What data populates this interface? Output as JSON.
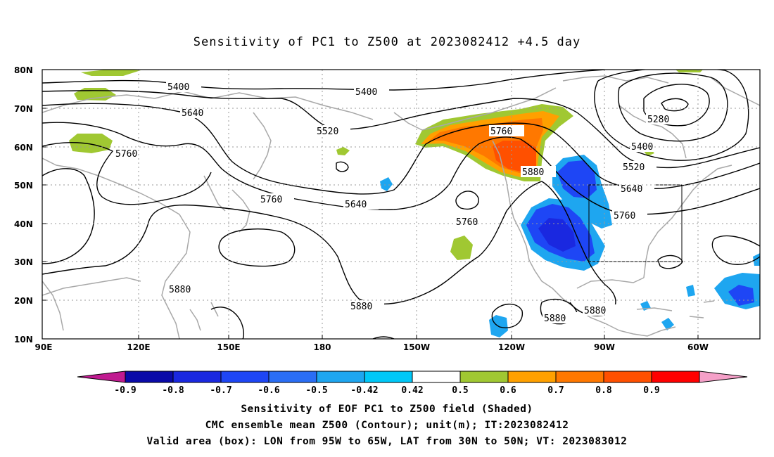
{
  "title": "Sensitivity of PC1 to Z500 at 2023082412 +4.5 day",
  "lat_labels": [
    "80N",
    "70N",
    "60N",
    "50N",
    "40N",
    "30N",
    "20N",
    "10N"
  ],
  "lon_labels": [
    "90E",
    "120E",
    "150E",
    "180",
    "150W",
    "120W",
    "90W",
    "60W"
  ],
  "contour_levels": [
    "5280",
    "5400",
    "5400",
    "5400",
    "5520",
    "5520",
    "5640",
    "5640",
    "5640",
    "5760",
    "5760",
    "5760",
    "5760",
    "5760",
    "5880",
    "5880",
    "5880",
    "5880",
    "5880"
  ],
  "colorbar": {
    "labels": [
      "-0.9",
      "-0.8",
      "-0.7",
      "-0.6",
      "-0.5",
      "-0.42",
      "0.42",
      "0.5",
      "0.6",
      "0.7",
      "0.8",
      "0.9"
    ],
    "colors": [
      "#c01a90",
      "#0a0aa8",
      "#1a28e0",
      "#1e46f5",
      "#2a6ef5",
      "#1ea6f0",
      "#00c8f8",
      "#ffffff",
      "#a0c832",
      "#ffa000",
      "#ff7800",
      "#ff5000",
      "#ff0000",
      "#f5a0c8"
    ]
  },
  "shading_colors": {
    "green": "#a0c832",
    "orange_light": "#ffa000",
    "orange": "#ff7800",
    "red_orange": "#ff5000",
    "blue_light": "#1ea6f0",
    "blue": "#1e46f5",
    "blue_dark": "#1a28e0",
    "coast": "#a8a8a8"
  },
  "valid_box": {
    "lon_from": "95W",
    "lon_to": "65W",
    "lat_from": "30N",
    "lat_to": "50N"
  },
  "captions": [
    "Sensitivity of EOF PC1 to Z500 field (Shaded)",
    "CMC ensemble mean Z500 (Contour); unit(m); IT:2023082412",
    "Valid area (box): LON from 95W to 65W, LAT from 30N to 50N; VT: 2023083012"
  ]
}
